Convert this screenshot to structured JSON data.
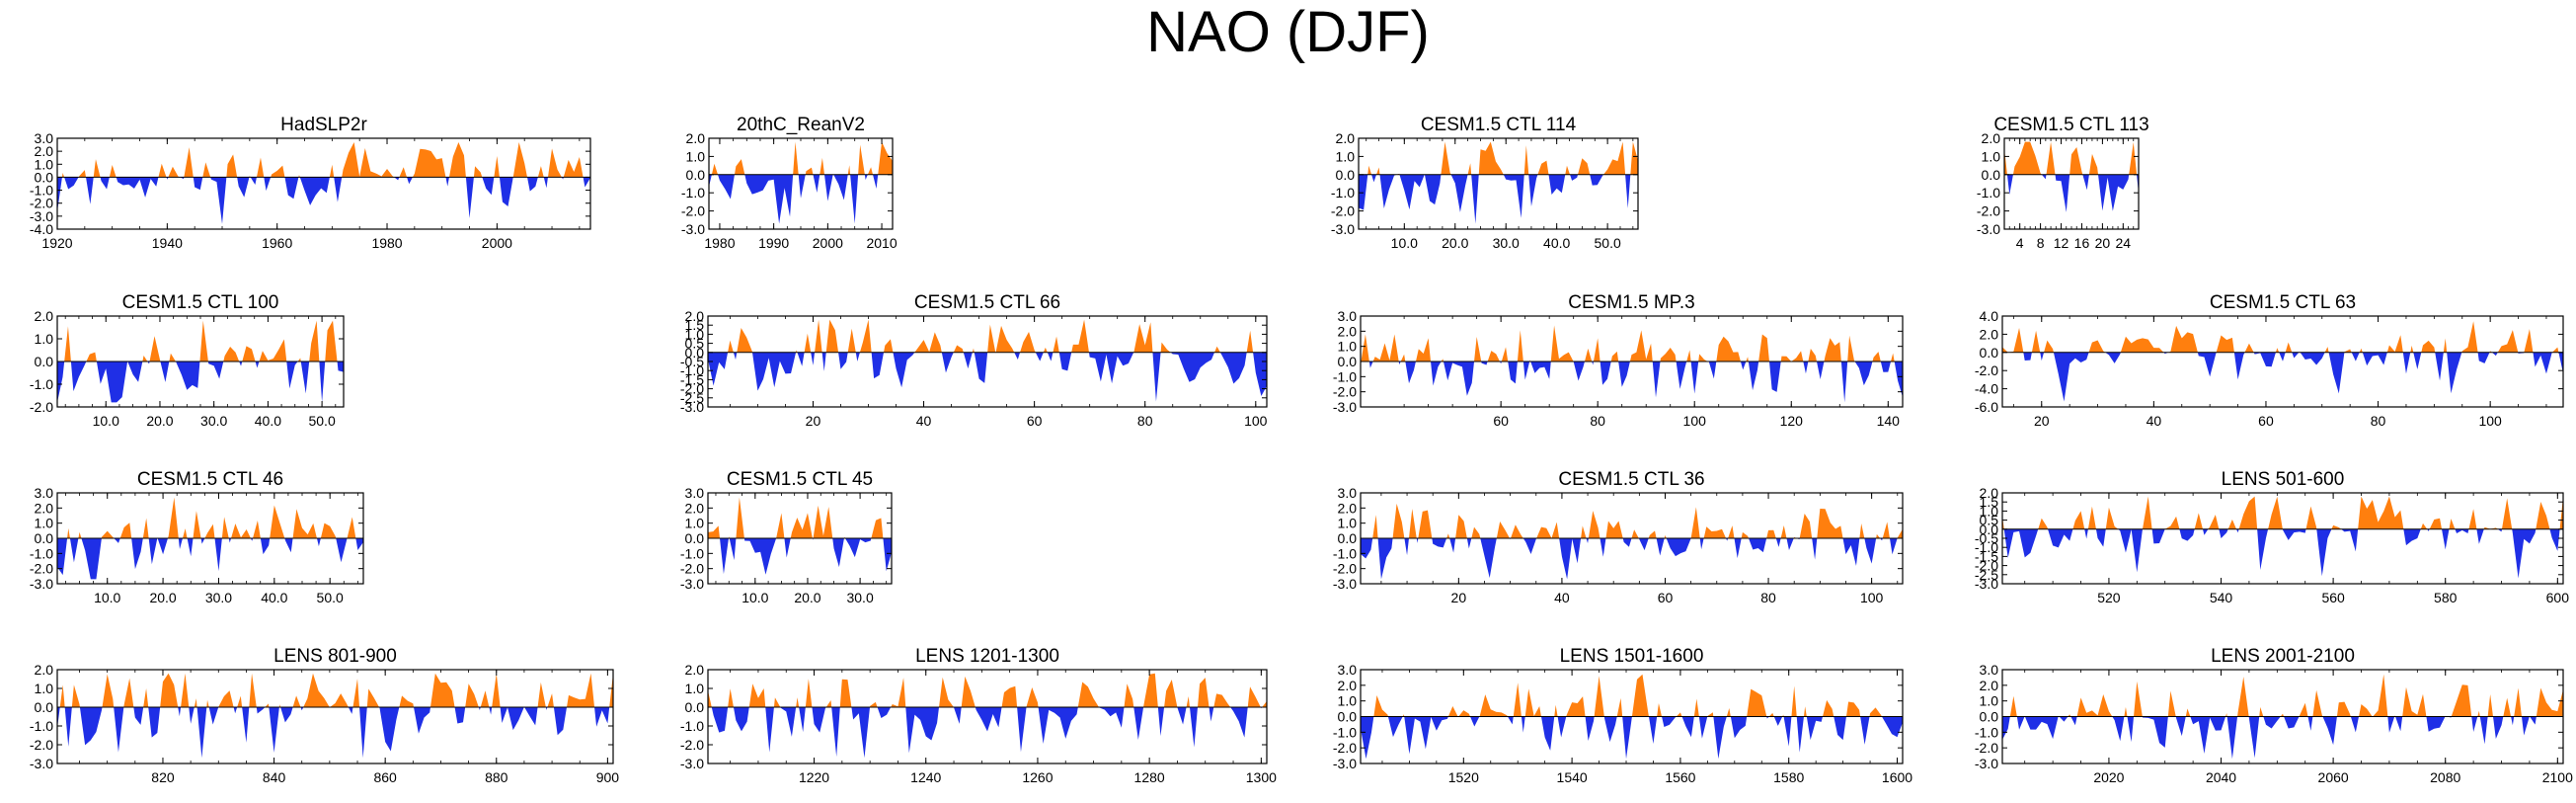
{
  "figure": {
    "title": "NAO (DJF)"
  },
  "colors": {
    "positive": "#ff7f0e",
    "negative": "#1f2fe6",
    "axis": "#000000"
  },
  "chart_data": [
    {
      "type": "area",
      "title": "HadSLP2r",
      "xlim": [
        1920,
        2017
      ],
      "ylim": [
        -4.0,
        3.0
      ],
      "yticks": [
        3.0,
        2.0,
        1.0,
        0.0,
        -1.0,
        -2.0,
        -3.0,
        -4.0
      ],
      "ytick_labels": [
        "3.0",
        "2.0",
        "1.0",
        "0.0",
        "-1.0",
        "-2.0",
        "-3.0",
        "-4.0"
      ],
      "xticks": [
        1920,
        1940,
        1960,
        1980,
        2000
      ],
      "xtick_labels": [
        "1920",
        "1940",
        "1960",
        "1980",
        "2000"
      ],
      "amp": 1.8,
      "seed": 11
    },
    {
      "type": "area",
      "title": "20thC_ReanV2",
      "xlim": [
        1978,
        2012
      ],
      "ylim": [
        -3.0,
        2.0
      ],
      "yticks": [
        2.0,
        1.0,
        0.0,
        -1.0,
        -2.0,
        -3.0
      ],
      "ytick_labels": [
        "2.0",
        "1.0",
        "0.0",
        "-1.0",
        "-2.0",
        "-3.0"
      ],
      "xticks": [
        1980,
        1990,
        2000,
        2010
      ],
      "xtick_labels": [
        "1980",
        "1990",
        "2000",
        "2010"
      ],
      "amp": 1.6,
      "seed": 23
    },
    {
      "type": "area",
      "title": "CESM1.5 CTL 114",
      "xlim": [
        1,
        56
      ],
      "ylim": [
        -3.0,
        2.0
      ],
      "yticks": [
        2.0,
        1.0,
        0.0,
        -1.0,
        -2.0,
        -3.0
      ],
      "ytick_labels": [
        "2.0",
        "1.0",
        "0.0",
        "-1.0",
        "-2.0",
        "-3.0"
      ],
      "xticks": [
        10,
        20,
        30,
        40,
        50
      ],
      "xtick_labels": [
        "10.0",
        "20.0",
        "30.0",
        "40.0",
        "50.0"
      ],
      "amp": 1.7,
      "seed": 37
    },
    {
      "type": "area",
      "title": "CESM1.5 CTL 113",
      "xlim": [
        1,
        27
      ],
      "ylim": [
        -3.0,
        2.0
      ],
      "yticks": [
        2.0,
        1.0,
        0.0,
        -1.0,
        -2.0,
        -3.0
      ],
      "ytick_labels": [
        "2.0",
        "1.0",
        "0.0",
        "-1.0",
        "-2.0",
        "-3.0"
      ],
      "xticks": [
        4,
        8,
        12,
        16,
        20,
        24
      ],
      "xtick_labels": [
        "4",
        "8",
        "12",
        "16",
        "20",
        "24"
      ],
      "amp": 1.7,
      "seed": 41
    },
    {
      "type": "area",
      "title": "CESM1.5 CTL 100",
      "xlim": [
        1,
        54
      ],
      "ylim": [
        -2.0,
        2.0
      ],
      "yticks": [
        2.0,
        1.0,
        0.0,
        -1.0,
        -2.0
      ],
      "ytick_labels": [
        "2.0",
        "1.0",
        "0.0",
        "-1.0",
        "-2.0"
      ],
      "xticks": [
        10,
        20,
        30,
        40,
        50
      ],
      "xtick_labels": [
        "10.0",
        "20.0",
        "30.0",
        "40.0",
        "50.0"
      ],
      "amp": 1.5,
      "seed": 53
    },
    {
      "type": "area",
      "title": "CESM1.5 CTL 66",
      "xlim": [
        1,
        102
      ],
      "ylim": [
        -3.0,
        2.0
      ],
      "yticks": [
        2.0,
        1.5,
        1.0,
        0.5,
        0.0,
        -0.5,
        -1.0,
        -1.5,
        -2.0,
        -2.5,
        -3.0
      ],
      "ytick_labels": [
        "2.0",
        "1.5",
        "1.0",
        "0.5",
        "0.0",
        "-0.5",
        "-1.0",
        "-1.5",
        "-2.0",
        "-2.5",
        "-3.0"
      ],
      "xticks": [
        20,
        40,
        60,
        80,
        100
      ],
      "xtick_labels": [
        "20",
        "40",
        "60",
        "80",
        "100"
      ],
      "amp": 1.5,
      "seed": 67
    },
    {
      "type": "area",
      "title": "CESM1.5 MP.3",
      "xlim": [
        31,
        143
      ],
      "ylim": [
        -3.0,
        3.0
      ],
      "yticks": [
        3.0,
        2.0,
        1.0,
        0.0,
        -1.0,
        -2.0,
        -3.0
      ],
      "ytick_labels": [
        "3.0",
        "2.0",
        "1.0",
        "0.0",
        "-1.0",
        "-2.0",
        "-3.0"
      ],
      "xticks": [
        60,
        80,
        100,
        120,
        140
      ],
      "xtick_labels": [
        "60",
        "80",
        "100",
        "120",
        "140"
      ],
      "amp": 1.6,
      "seed": 71
    },
    {
      "type": "area",
      "title": "CESM1.5 CTL 63",
      "xlim": [
        13,
        113
      ],
      "ylim": [
        -6.0,
        4.0
      ],
      "yticks": [
        4.0,
        2.0,
        0.0,
        -2.0,
        -4.0,
        -6.0
      ],
      "ytick_labels": [
        "4.0",
        "2.0",
        "0.0",
        "-2.0",
        "-4.0",
        "-6.0"
      ],
      "xticks": [
        20,
        40,
        60,
        80,
        100
      ],
      "xtick_labels": [
        "20",
        "40",
        "60",
        "80",
        "100"
      ],
      "amp": 2.0,
      "seed": 83
    },
    {
      "type": "area",
      "title": "CESM1.5 CTL 46",
      "xlim": [
        1,
        56
      ],
      "ylim": [
        -3.0,
        3.0
      ],
      "yticks": [
        3.0,
        2.0,
        1.0,
        0.0,
        -1.0,
        -2.0,
        -3.0
      ],
      "ytick_labels": [
        "3.0",
        "2.0",
        "1.0",
        "0.0",
        "-1.0",
        "-2.0",
        "-3.0"
      ],
      "xticks": [
        10,
        20,
        30,
        40,
        50
      ],
      "xtick_labels": [
        "10.0",
        "20.0",
        "30.0",
        "40.0",
        "50.0"
      ],
      "amp": 1.6,
      "seed": 97
    },
    {
      "type": "area",
      "title": "CESM1.5 CTL 45",
      "xlim": [
        1,
        36
      ],
      "ylim": [
        -3.0,
        3.0
      ],
      "yticks": [
        3.0,
        2.0,
        1.0,
        0.0,
        -1.0,
        -2.0,
        -3.0
      ],
      "ytick_labels": [
        "3.0",
        "2.0",
        "1.0",
        "0.0",
        "-1.0",
        "-2.0",
        "-3.0"
      ],
      "xticks": [
        10,
        20,
        30
      ],
      "xtick_labels": [
        "10.0",
        "20.0",
        "30.0"
      ],
      "amp": 1.6,
      "seed": 101
    },
    {
      "type": "area",
      "title": "CESM1.5 CTL 36",
      "xlim": [
        1,
        106
      ],
      "ylim": [
        -3.0,
        3.0
      ],
      "yticks": [
        3.0,
        2.0,
        1.0,
        0.0,
        -1.0,
        -2.0,
        -3.0
      ],
      "ytick_labels": [
        "3.0",
        "2.0",
        "1.0",
        "0.0",
        "-1.0",
        "-2.0",
        "-3.0"
      ],
      "xticks": [
        20,
        40,
        60,
        80,
        100
      ],
      "xtick_labels": [
        "20",
        "40",
        "60",
        "80",
        "100"
      ],
      "amp": 1.6,
      "seed": 113
    },
    {
      "type": "area",
      "title": "LENS 501-600",
      "xlim": [
        501,
        601
      ],
      "ylim": [
        -3.0,
        2.0
      ],
      "yticks": [
        2.0,
        1.5,
        1.0,
        0.5,
        0.0,
        -0.5,
        -1.0,
        -1.5,
        -2.0,
        -2.5,
        -3.0
      ],
      "ytick_labels": [
        "2.0",
        "1.5",
        "1.0",
        "0.5",
        "0.0",
        "-0.5",
        "-1.0",
        "-1.5",
        "-2.0",
        "-2.5",
        "-3.0"
      ],
      "xticks": [
        520,
        540,
        560,
        580,
        600
      ],
      "xtick_labels": [
        "520",
        "540",
        "560",
        "580",
        "600"
      ],
      "amp": 1.5,
      "seed": 127
    },
    {
      "type": "area",
      "title": "LENS 801-900",
      "xlim": [
        801,
        901
      ],
      "ylim": [
        -3.0,
        2.0
      ],
      "yticks": [
        2.0,
        1.0,
        0.0,
        -1.0,
        -2.0,
        -3.0
      ],
      "ytick_labels": [
        "2.0",
        "1.0",
        "0.0",
        "-1.0",
        "-2.0",
        "-3.0"
      ],
      "xticks": [
        820,
        840,
        860,
        880,
        900
      ],
      "xtick_labels": [
        "820",
        "840",
        "860",
        "880",
        "900"
      ],
      "amp": 1.6,
      "seed": 131
    },
    {
      "type": "area",
      "title": "LENS 1201-1300",
      "xlim": [
        1201,
        1301
      ],
      "ylim": [
        -3.0,
        2.0
      ],
      "yticks": [
        2.0,
        1.0,
        0.0,
        -1.0,
        -2.0,
        -3.0
      ],
      "ytick_labels": [
        "2.0",
        "1.0",
        "0.0",
        "-1.0",
        "-2.0",
        "-3.0"
      ],
      "xticks": [
        1220,
        1240,
        1260,
        1280,
        1300
      ],
      "xtick_labels": [
        "1220",
        "1240",
        "1260",
        "1280",
        "1300"
      ],
      "amp": 1.6,
      "seed": 149
    },
    {
      "type": "area",
      "title": "LENS 1501-1600",
      "xlim": [
        1501,
        1601
      ],
      "ylim": [
        -3.0,
        3.0
      ],
      "yticks": [
        3.0,
        2.0,
        1.0,
        0.0,
        -1.0,
        -2.0,
        -3.0
      ],
      "ytick_labels": [
        "3.0",
        "2.0",
        "1.0",
        "0.0",
        "-1.0",
        "-2.0",
        "-3.0"
      ],
      "xticks": [
        1520,
        1540,
        1560,
        1580,
        1600
      ],
      "xtick_labels": [
        "1520",
        "1540",
        "1560",
        "1580",
        "1600"
      ],
      "amp": 1.6,
      "seed": 157
    },
    {
      "type": "area",
      "title": "LENS 2001-2100",
      "xlim": [
        2001,
        2101
      ],
      "ylim": [
        -3.0,
        3.0
      ],
      "yticks": [
        3.0,
        2.0,
        1.0,
        0.0,
        -1.0,
        -2.0,
        -3.0
      ],
      "ytick_labels": [
        "3.0",
        "2.0",
        "1.0",
        "0.0",
        "-1.0",
        "-2.0",
        "-3.0"
      ],
      "xticks": [
        2020,
        2040,
        2060,
        2080,
        2100
      ],
      "xtick_labels": [
        "2020",
        "2040",
        "2060",
        "2080",
        "2100"
      ],
      "amp": 1.6,
      "seed": 163
    }
  ]
}
